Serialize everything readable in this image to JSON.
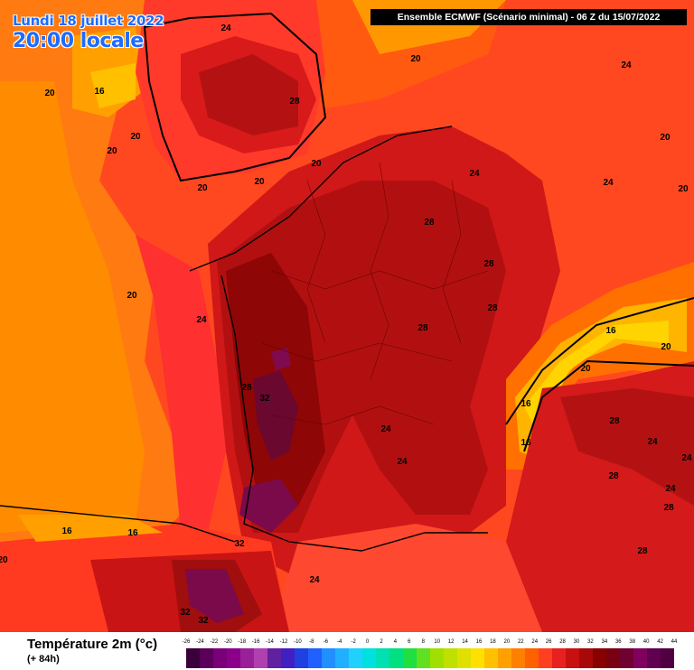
{
  "date_label": "Lundi 18 juillet 2022",
  "time_label": "20:00 locale",
  "header": "Ensemble ECMWF  (Scénario minimal) - 06 Z du 15/07/2022",
  "legend": {
    "title": "Température 2m (°c)",
    "subtitle": "(+ 84h)",
    "ticks": [
      "-26",
      "-24",
      "-22",
      "-20",
      "-18",
      "-16",
      "-14",
      "-12",
      "-10",
      "-8",
      "-6",
      "-4",
      "-2",
      "0",
      "2",
      "4",
      "6",
      "8",
      "10",
      "12",
      "14",
      "16",
      "18",
      "20",
      "22",
      "24",
      "26",
      "28",
      "30",
      "32",
      "34",
      "36",
      "38",
      "40",
      "42",
      "44"
    ],
    "colors": [
      "#3a003a",
      "#5a005a",
      "#7a007a",
      "#8a008a",
      "#9a209a",
      "#b040b0",
      "#6020a0",
      "#4020c0",
      "#2040e0",
      "#2060ff",
      "#2090ff",
      "#20b0ff",
      "#20d0ff",
      "#00e0e0",
      "#00e0b0",
      "#00e080",
      "#20e040",
      "#60e020",
      "#a0e000",
      "#c0e000",
      "#e0e000",
      "#ffe000",
      "#ffc000",
      "#ffa000",
      "#ff8000",
      "#ff6000",
      "#ff4020",
      "#e82020",
      "#c81010",
      "#a80808",
      "#880000",
      "#780010",
      "#700030",
      "#800060",
      "#600050",
      "#500040"
    ]
  },
  "contour_labels": [
    {
      "text": "24"
    },
    {
      "text": "20"
    },
    {
      "text": "24"
    },
    {
      "text": "20"
    },
    {
      "text": "16"
    },
    {
      "text": "20"
    },
    {
      "text": "28"
    },
    {
      "text": "20"
    },
    {
      "text": "20"
    },
    {
      "text": "20"
    },
    {
      "text": "20"
    },
    {
      "text": "24"
    },
    {
      "text": "24"
    },
    {
      "text": "20"
    },
    {
      "text": "20"
    },
    {
      "text": "28"
    },
    {
      "text": "20"
    },
    {
      "text": "28"
    },
    {
      "text": "24"
    },
    {
      "text": "28"
    },
    {
      "text": "16"
    },
    {
      "text": "20"
    },
    {
      "text": "28"
    },
    {
      "text": "32"
    },
    {
      "text": "20"
    },
    {
      "text": "16"
    },
    {
      "text": "24"
    },
    {
      "text": "28"
    },
    {
      "text": "24"
    },
    {
      "text": "16"
    },
    {
      "text": "24"
    },
    {
      "text": "28"
    },
    {
      "text": "24"
    },
    {
      "text": "28"
    },
    {
      "text": "16"
    },
    {
      "text": "16"
    },
    {
      "text": "32"
    },
    {
      "text": "24"
    },
    {
      "text": "28"
    },
    {
      "text": "32"
    },
    {
      "text": "32"
    },
    {
      "text": "20"
    },
    {
      "text": "28"
    },
    {
      "text": "24"
    }
  ]
}
